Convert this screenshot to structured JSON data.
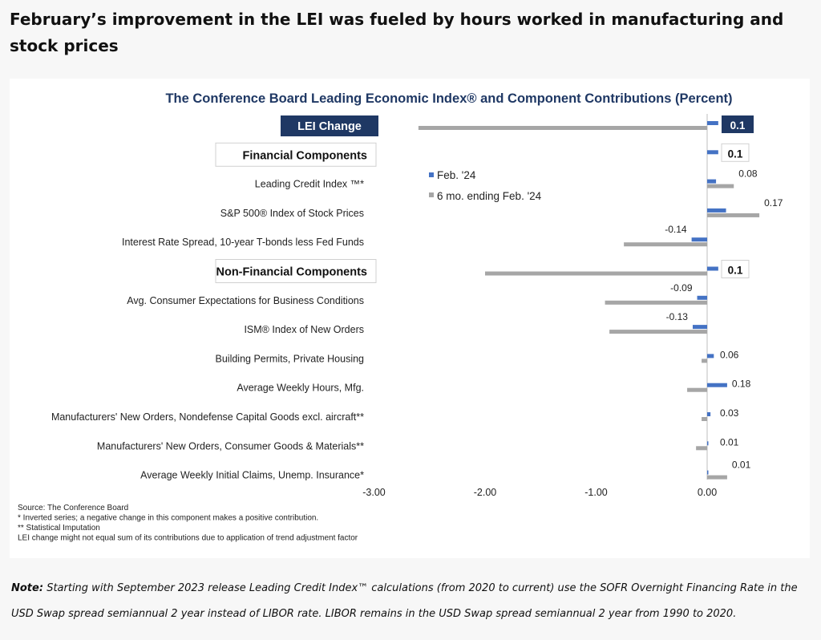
{
  "headline": "February’s improvement in the LEI was fueled by hours worked in manufacturing and stock prices",
  "note": {
    "label": "Note:",
    "text": "Starting with September 2023 release Leading Credit Index™ calculations (from 2020 to current) use the SOFR Overnight Financing Rate in the USD Swap spread semiannual 2 year instead of LIBOR rate. LIBOR remains in the USD Swap spread semiannual 2 year from 1990 to 2020."
  },
  "colors": {
    "feb": "#4472c4",
    "six": "#a6a6a6",
    "navy": "#1f3864",
    "lei_box": "#1f3864"
  },
  "chart_data": {
    "type": "bar",
    "orientation": "horizontal",
    "title": "The Conference Board Leading Economic Index® and Component Contributions (Percent)",
    "xlim": [
      -3.0,
      0.0
    ],
    "x_ticks": [
      "-3.00",
      "-2.00",
      "-1.00",
      "0.00"
    ],
    "x_tick_values": [
      -3,
      -2,
      -1,
      0
    ],
    "legend": [
      "Feb. '24",
      "6 mo. ending Feb. '24"
    ],
    "legend_position": "upper-middle",
    "categories": [
      {
        "label": "LEI Change",
        "style": "lei",
        "feb": 0.1,
        "six": -2.6,
        "feb_label": "0.1"
      },
      {
        "label": "Financial Components",
        "style": "header",
        "feb": 0.1,
        "six": null,
        "feb_label": "0.1"
      },
      {
        "label": "Leading Credit Index ™*",
        "style": "item",
        "feb": 0.08,
        "six": 0.24,
        "feb_label": "0.08"
      },
      {
        "label": "S&P 500® Index of Stock Prices",
        "style": "item",
        "feb": 0.17,
        "six": 0.47,
        "feb_label": "0.17"
      },
      {
        "label": "Interest Rate Spread, 10-year T-bonds less Fed Funds",
        "style": "item",
        "feb": -0.14,
        "six": -0.75,
        "feb_label": "-0.14"
      },
      {
        "label": "Non-Financial Components",
        "style": "header",
        "feb": 0.1,
        "six": -2.0,
        "feb_label": "0.1"
      },
      {
        "label": "Avg. Consumer Expectations for Business Conditions",
        "style": "item",
        "feb": -0.09,
        "six": -0.92,
        "feb_label": "-0.09"
      },
      {
        "label": "ISM® Index of New Orders",
        "style": "item",
        "feb": -0.13,
        "six": -0.88,
        "feb_label": "-0.13"
      },
      {
        "label": "Building Permits, Private Housing",
        "style": "item",
        "feb": 0.06,
        "six": -0.05,
        "feb_label": "0.06"
      },
      {
        "label": "Average Weekly Hours, Mfg.",
        "style": "item",
        "feb": 0.18,
        "six": -0.18,
        "feb_label": "0.18"
      },
      {
        "label": "Manufacturers' New Orders, Nondefense Capital Goods excl. aircraft**",
        "style": "item",
        "feb": 0.03,
        "six": -0.05,
        "feb_label": "0.03"
      },
      {
        "label": "Manufacturers' New Orders, Consumer Goods & Materials**",
        "style": "item",
        "feb": 0.01,
        "six": -0.1,
        "feb_label": "0.01"
      },
      {
        "label": "Average Weekly Initial Claims, Unemp. Insurance*",
        "style": "item",
        "feb": 0.01,
        "six": 0.18,
        "feb_label": "0.01"
      }
    ],
    "footnotes": [
      "Source: The Conference Board",
      "*  Inverted series; a negative change in this component makes a positive contribution.",
      "**  Statistical Imputation",
      "LEI change might not equal sum of its contributions due to application of trend adjustment factor"
    ]
  }
}
